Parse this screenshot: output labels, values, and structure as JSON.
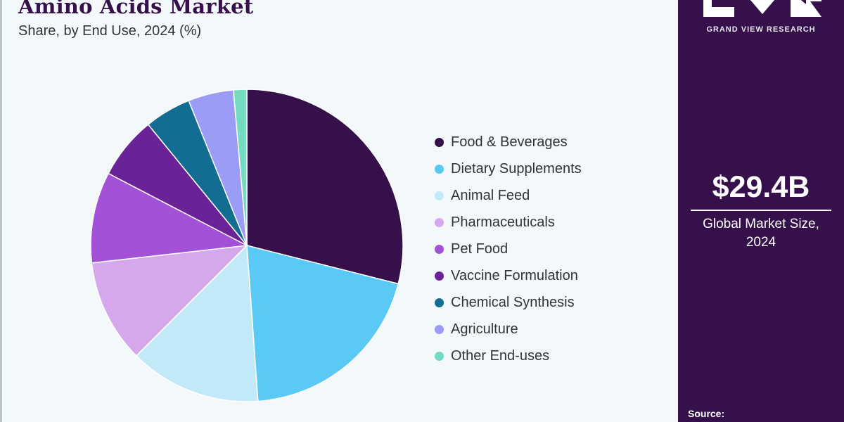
{
  "header": {
    "title": "Amino Acids Market",
    "subtitle": "Share, by End Use, 2024 (%)"
  },
  "chart_data": {
    "type": "pie",
    "title": "Amino Acids Market",
    "subtitle": "Share, by End Use, 2024 (%)",
    "categories": [
      "Food & Beverages",
      "Dietary Supplements",
      "Animal Feed",
      "Pharmaceuticals",
      "Pet Food",
      "Vaccine Formulation",
      "Chemical Synthesis",
      "Agriculture",
      "Other End-uses"
    ],
    "values": [
      29.5,
      20.3,
      13.9,
      10.9,
      9.6,
      6.6,
      4.9,
      4.8,
      1.4
    ],
    "colors": [
      "#35104a",
      "#5bc9f5",
      "#c2e9f7",
      "#d4a8ea",
      "#a352d7",
      "#6a2397",
      "#136d92",
      "#9a9cf6",
      "#74dbc3"
    ],
    "legend_position": "right"
  },
  "sidebar": {
    "brand": "GRAND VIEW RESEARCH",
    "market_size": "$29.4B",
    "market_caption": "Global Market Size, 2024",
    "source_label": "Source:"
  }
}
